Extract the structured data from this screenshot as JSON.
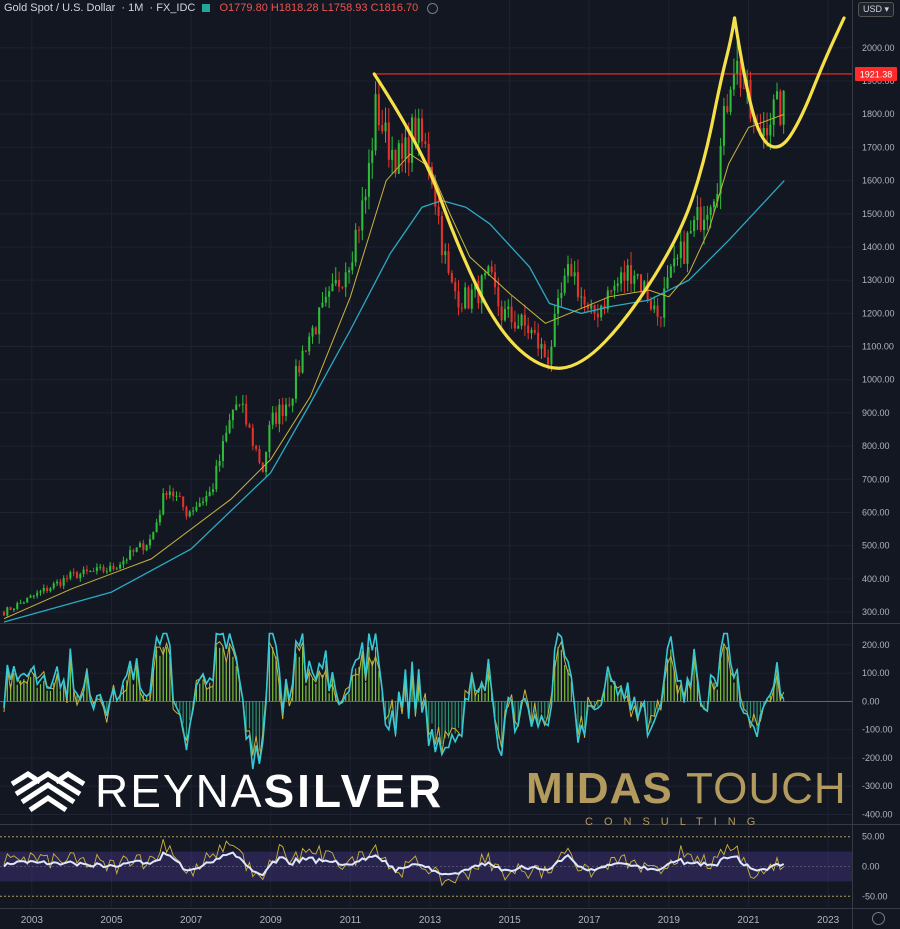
{
  "header": {
    "symbol": "Gold Spot / U.S. Dollar",
    "interval": "1M",
    "source": "FX_IDC",
    "ohlc": "O1779.80 H1818.28 L1758.93 C1816.70"
  },
  "currency": "USD",
  "colors": {
    "background": "#131722",
    "up": "#2ebd38",
    "down": "#e0342c",
    "ma_fast": "#c9b43c",
    "ma_slow": "#2aa9c3",
    "pattern": "#f5e048",
    "resistance": "#ff2a2a",
    "grid": "#1e2231"
  },
  "logos": {
    "reyna_light": "REYNA",
    "reyna_bold": "SILVER",
    "midas_bold": "MIDAS",
    "midas_light": "TOUCH",
    "midas_sub": "CONSULTING"
  },
  "chart_data": [
    {
      "type": "candlestick",
      "frequency": "monthly",
      "x_range": [
        2002.2,
        2023.6
      ],
      "y_range": [
        270,
        2090
      ],
      "y_ticks": [
        300,
        400,
        500,
        600,
        700,
        800,
        900,
        1000,
        1100,
        1200,
        1300,
        1400,
        1500,
        1600,
        1700,
        1800,
        1900,
        2000
      ],
      "resistance_label": "1921.38",
      "resistance_value": 1921.38,
      "price_anchors": [
        [
          2002.3,
          300
        ],
        [
          2003.0,
          345
        ],
        [
          2004.0,
          410
        ],
        [
          2005.0,
          430
        ],
        [
          2006.0,
          520
        ],
        [
          2006.4,
          680
        ],
        [
          2006.9,
          600
        ],
        [
          2007.5,
          660
        ],
        [
          2008.1,
          930
        ],
        [
          2008.3,
          900
        ],
        [
          2008.8,
          730
        ],
        [
          2009.0,
          870
        ],
        [
          2009.5,
          950
        ],
        [
          2009.9,
          1120
        ],
        [
          2010.5,
          1240
        ],
        [
          2011.0,
          1380
        ],
        [
          2011.4,
          1560
        ],
        [
          2011.65,
          1830
        ],
        [
          2011.9,
          1720
        ],
        [
          2012.3,
          1650
        ],
        [
          2012.6,
          1760
        ],
        [
          2013.0,
          1660
        ],
        [
          2013.3,
          1420
        ],
        [
          2013.5,
          1280
        ],
        [
          2013.9,
          1240
        ],
        [
          2014.5,
          1300
        ],
        [
          2014.8,
          1200
        ],
        [
          2015.5,
          1150
        ],
        [
          2015.95,
          1060
        ],
        [
          2016.3,
          1250
        ],
        [
          2016.55,
          1340
        ],
        [
          2017.0,
          1180
        ],
        [
          2017.5,
          1260
        ],
        [
          2018.1,
          1340
        ],
        [
          2018.5,
          1250
        ],
        [
          2018.7,
          1190
        ],
        [
          2019.0,
          1290
        ],
        [
          2019.4,
          1400
        ],
        [
          2019.8,
          1500
        ],
        [
          2020.2,
          1600
        ],
        [
          2020.6,
          1970
        ],
        [
          2020.85,
          1900
        ],
        [
          2021.2,
          1720
        ],
        [
          2021.5,
          1800
        ],
        [
          2021.9,
          1816.7
        ]
      ],
      "moving_average_fast": [
        [
          2002.3,
          280
        ],
        [
          2004.0,
          370
        ],
        [
          2006.0,
          460
        ],
        [
          2008.0,
          640
        ],
        [
          2009.0,
          760
        ],
        [
          2010.0,
          950
        ],
        [
          2011.0,
          1250
        ],
        [
          2011.9,
          1600
        ],
        [
          2012.5,
          1680
        ],
        [
          2013.0,
          1640
        ],
        [
          2013.5,
          1500
        ],
        [
          2014.0,
          1370
        ],
        [
          2015.0,
          1260
        ],
        [
          2015.9,
          1170
        ],
        [
          2016.5,
          1200
        ],
        [
          2017.5,
          1250
        ],
        [
          2018.5,
          1270
        ],
        [
          2019.0,
          1250
        ],
        [
          2019.5,
          1320
        ],
        [
          2020.0,
          1450
        ],
        [
          2020.5,
          1650
        ],
        [
          2021.0,
          1760
        ],
        [
          2021.9,
          1800
        ]
      ],
      "moving_average_slow": [
        [
          2002.3,
          270
        ],
        [
          2005.0,
          360
        ],
        [
          2007.0,
          490
        ],
        [
          2009.0,
          720
        ],
        [
          2010.0,
          930
        ],
        [
          2011.0,
          1150
        ],
        [
          2012.0,
          1380
        ],
        [
          2012.8,
          1520
        ],
        [
          2013.3,
          1540
        ],
        [
          2013.9,
          1520
        ],
        [
          2014.5,
          1470
        ],
        [
          2015.5,
          1340
        ],
        [
          2016.0,
          1230
        ],
        [
          2016.8,
          1200
        ],
        [
          2017.5,
          1220
        ],
        [
          2018.5,
          1240
        ],
        [
          2019.5,
          1300
        ],
        [
          2020.5,
          1420
        ],
        [
          2021.9,
          1600
        ]
      ],
      "pattern_curves": [
        [
          [
            2011.6,
            1921.38
          ],
          [
            2012.8,
            1700
          ],
          [
            2013.7,
            1400
          ],
          [
            2014.7,
            1150
          ],
          [
            2015.8,
            1030
          ],
          [
            2016.8,
            1040
          ],
          [
            2018.0,
            1190
          ],
          [
            2019.3,
            1440
          ],
          [
            2019.9,
            1660
          ],
          [
            2020.3,
            1900
          ],
          [
            2020.55,
            2020
          ],
          [
            2020.65,
            2090
          ]
        ],
        [
          [
            2020.65,
            2090
          ],
          [
            2020.9,
            1900
          ],
          [
            2021.3,
            1720
          ],
          [
            2021.8,
            1690
          ],
          [
            2022.3,
            1780
          ],
          [
            2022.9,
            1960
          ],
          [
            2023.4,
            2090
          ]
        ]
      ]
    },
    {
      "type": "line",
      "panel": "oscillator",
      "y_range": [
        -430,
        270
      ],
      "y_ticks": [
        -400,
        -300,
        -200,
        -100,
        0,
        100,
        200
      ]
    },
    {
      "type": "line",
      "panel": "oscillator",
      "y_range": [
        -68,
        68
      ],
      "y_ticks": [
        -50,
        0,
        50
      ],
      "x_ticks": [
        2003,
        2005,
        2007,
        2009,
        2011,
        2013,
        2015,
        2017,
        2019,
        2021,
        2023
      ]
    }
  ]
}
